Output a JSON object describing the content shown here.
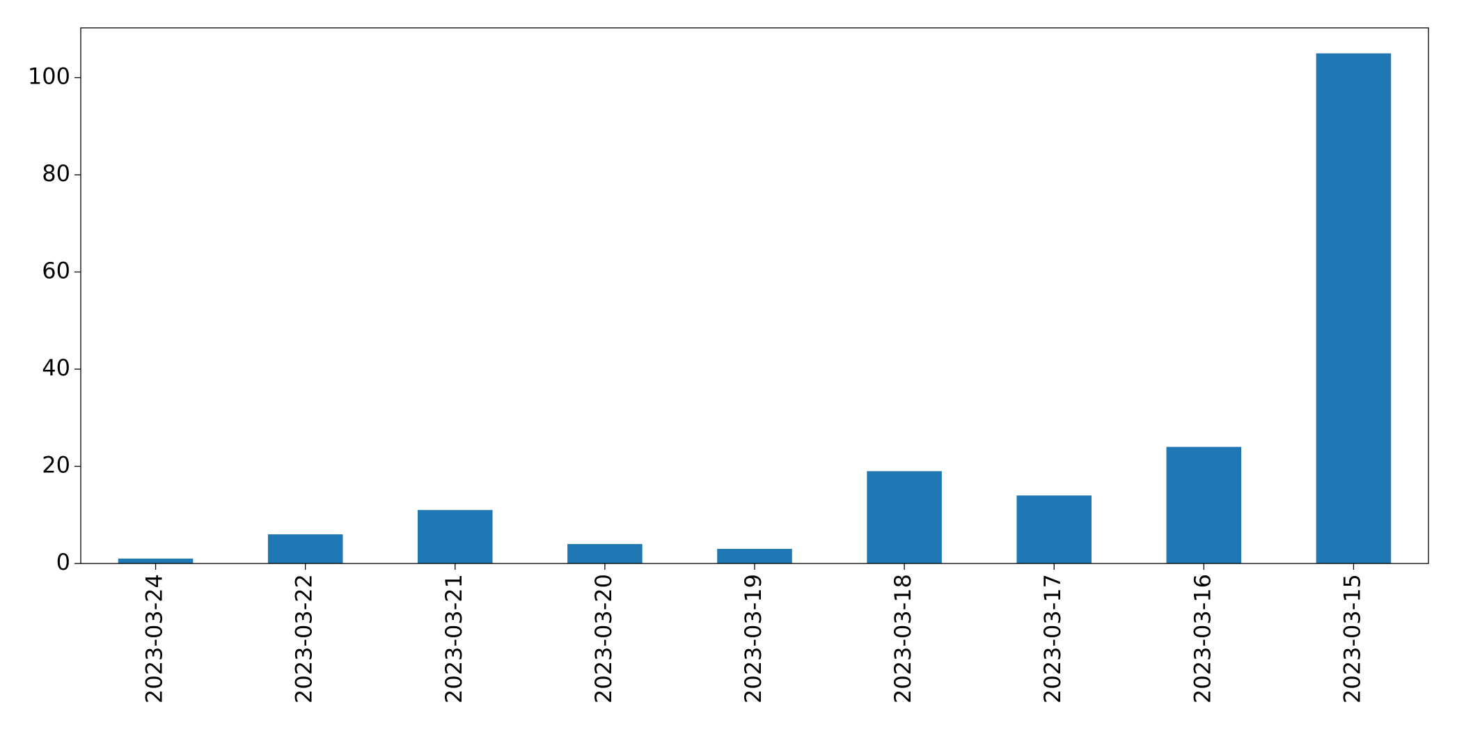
{
  "chart_data": {
    "type": "bar",
    "categories": [
      "2023-03-24",
      "2023-03-22",
      "2023-03-21",
      "2023-03-20",
      "2023-03-19",
      "2023-03-18",
      "2023-03-17",
      "2023-03-16",
      "2023-03-15"
    ],
    "values": [
      1,
      6,
      11,
      4,
      3,
      19,
      14,
      24,
      105
    ],
    "color": "#1f77b4",
    "ylim": [
      0,
      110.25
    ],
    "yticks": [
      0,
      20,
      40,
      60,
      80,
      100
    ],
    "grid": false
  }
}
